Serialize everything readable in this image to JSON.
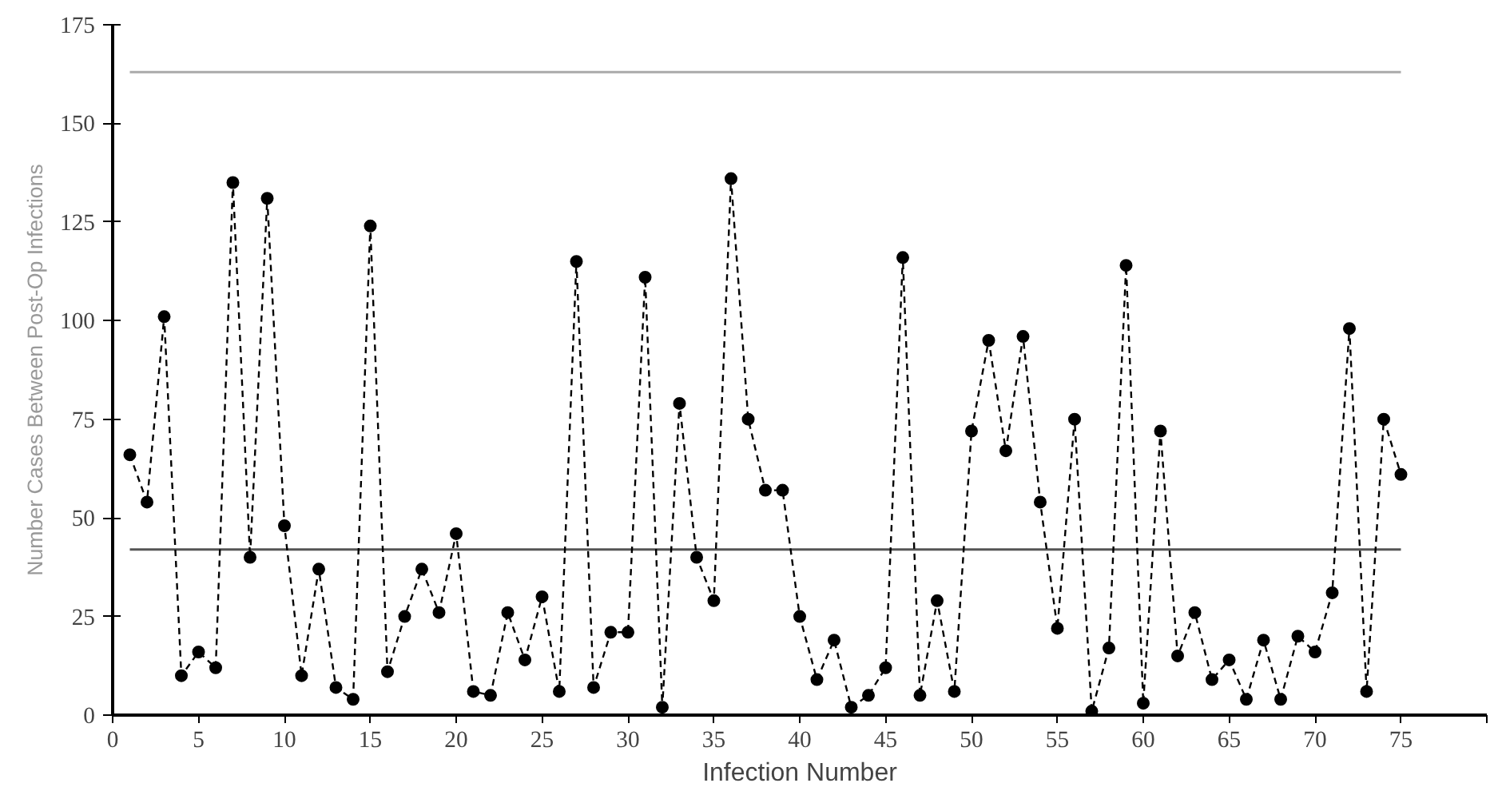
{
  "chart_data": {
    "type": "line",
    "xlabel": "Infection Number",
    "ylabel": "Number Cases Between Post-Op Infections",
    "x": [
      1,
      2,
      3,
      4,
      5,
      6,
      7,
      8,
      9,
      10,
      11,
      12,
      13,
      14,
      15,
      16,
      17,
      18,
      19,
      20,
      21,
      22,
      23,
      24,
      25,
      26,
      27,
      28,
      29,
      30,
      31,
      32,
      33,
      34,
      35,
      36,
      37,
      38,
      39,
      40,
      41,
      42,
      43,
      44,
      45,
      46,
      47,
      48,
      49,
      50,
      51,
      52,
      53,
      54,
      55,
      56,
      57,
      58,
      59,
      60,
      61,
      62,
      63,
      64,
      65,
      66,
      67,
      68,
      69,
      70,
      71,
      72,
      73,
      74,
      75
    ],
    "series": [
      {
        "color": "#000000",
        "values": [
          66,
          54,
          101,
          10,
          16,
          12,
          135,
          40,
          131,
          48,
          10,
          37,
          7,
          4,
          124,
          11,
          25,
          37,
          26,
          46,
          6,
          5,
          26,
          14,
          30,
          6,
          115,
          7,
          21,
          21,
          111,
          2,
          79,
          40,
          29,
          136,
          75,
          57,
          57,
          25,
          9,
          19,
          2,
          5,
          12,
          116,
          5,
          29,
          6,
          72,
          95,
          67,
          96,
          54,
          22,
          75,
          1,
          17,
          114,
          3,
          72,
          15,
          26,
          9,
          14,
          4,
          19,
          4,
          20,
          16,
          31,
          98,
          6,
          75,
          61
        ]
      }
    ],
    "xlim": [
      0,
      80
    ],
    "xticks": [
      0,
      5,
      10,
      15,
      20,
      25,
      30,
      35,
      40,
      45,
      50,
      55,
      60,
      65,
      70,
      75,
      {
        "value": 80,
        "label": null
      }
    ],
    "ylim": [
      0,
      175
    ],
    "yticks": [
      0,
      25,
      50,
      75,
      100,
      125,
      150,
      175
    ],
    "ref_lines": [
      {
        "axis": "y",
        "value": 163,
        "color": "#aaaaaa"
      },
      {
        "axis": "y",
        "value": 42,
        "color": "#555555"
      }
    ],
    "grid": false,
    "marker": "circle",
    "line_style": "dashed"
  }
}
